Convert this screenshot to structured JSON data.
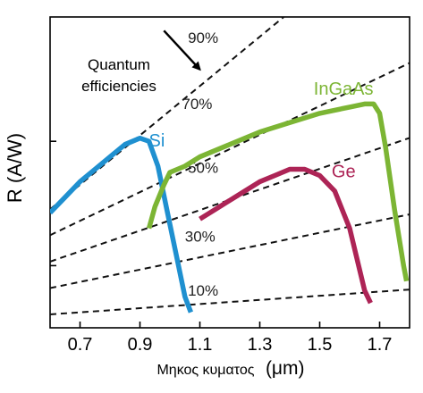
{
  "chart_data": {
    "type": "line",
    "title": "",
    "xlabel_text": "Μηκος κυματος",
    "xlabel_unit": "(μm)",
    "ylabel": "R  (A/W)",
    "xlim": [
      0.6,
      1.8
    ],
    "ylim": [
      0.0,
      1.0
    ],
    "x_ticks": [
      0.7,
      0.9,
      1.1,
      1.3,
      1.5,
      1.7
    ],
    "x_tick_labels": [
      "0.7",
      "0.9",
      "1.1",
      "1.3",
      "1.5",
      "1.7"
    ],
    "y_ticks": [
      0.2,
      0.6
    ],
    "grid": false,
    "annotation": {
      "line1": "Quantum",
      "line2": "efficiencies",
      "from": [
        0.98,
        0.956
      ],
      "to": [
        1.1,
        0.831
      ]
    },
    "efficiency_lines": [
      {
        "label": "10%",
        "points": [
          [
            0.6,
            0.043
          ],
          [
            1.8,
            0.123
          ]
        ],
        "label_at": [
          1.06,
          0.103
        ]
      },
      {
        "label": "30%",
        "points": [
          [
            0.6,
            0.128
          ],
          [
            1.8,
            0.365
          ]
        ],
        "label_at": [
          1.05,
          0.278
        ]
      },
      {
        "label": "50%",
        "points": [
          [
            0.6,
            0.213
          ],
          [
            1.8,
            0.611
          ]
        ],
        "label_at": [
          1.06,
          0.499
        ]
      },
      {
        "label": "70%",
        "points": [
          [
            0.6,
            0.298
          ],
          [
            1.8,
            0.852
          ]
        ],
        "label_at": [
          1.04,
          0.704
        ]
      },
      {
        "label": "90%",
        "points": [
          [
            0.6,
            0.381
          ],
          [
            1.38,
            1.0
          ]
        ],
        "label_at": [
          1.06,
          0.916
        ]
      }
    ],
    "series": [
      {
        "name": "Si",
        "color": "#1f90d0",
        "label_at": [
          0.93,
          0.583
        ],
        "x": [
          0.6,
          0.65,
          0.7,
          0.75,
          0.8,
          0.85,
          0.9,
          0.93,
          0.96,
          0.99,
          1.02,
          1.05,
          1.07
        ],
        "y": [
          0.37,
          0.42,
          0.47,
          0.51,
          0.55,
          0.59,
          0.61,
          0.6,
          0.52,
          0.38,
          0.24,
          0.1,
          0.05
        ]
      },
      {
        "name": "InGaAs",
        "color": "#7cb534",
        "label_at": [
          1.48,
          0.75
        ],
        "x": [
          0.93,
          0.95,
          0.98,
          1.0,
          1.05,
          1.1,
          1.2,
          1.3,
          1.4,
          1.5,
          1.6,
          1.65,
          1.68,
          1.7,
          1.72,
          1.75,
          1.78,
          1.79
        ],
        "y": [
          0.32,
          0.39,
          0.46,
          0.5,
          0.52,
          0.55,
          0.59,
          0.63,
          0.66,
          0.69,
          0.71,
          0.72,
          0.72,
          0.69,
          0.58,
          0.38,
          0.2,
          0.15
        ]
      },
      {
        "name": "Ge",
        "color": "#ad2456",
        "label_at": [
          1.54,
          0.484
        ],
        "x": [
          1.1,
          1.15,
          1.2,
          1.25,
          1.3,
          1.35,
          1.4,
          1.45,
          1.5,
          1.55,
          1.6,
          1.63,
          1.65,
          1.67
        ],
        "y": [
          0.35,
          0.38,
          0.41,
          0.44,
          0.47,
          0.49,
          0.51,
          0.51,
          0.49,
          0.44,
          0.32,
          0.2,
          0.12,
          0.08
        ]
      }
    ]
  }
}
